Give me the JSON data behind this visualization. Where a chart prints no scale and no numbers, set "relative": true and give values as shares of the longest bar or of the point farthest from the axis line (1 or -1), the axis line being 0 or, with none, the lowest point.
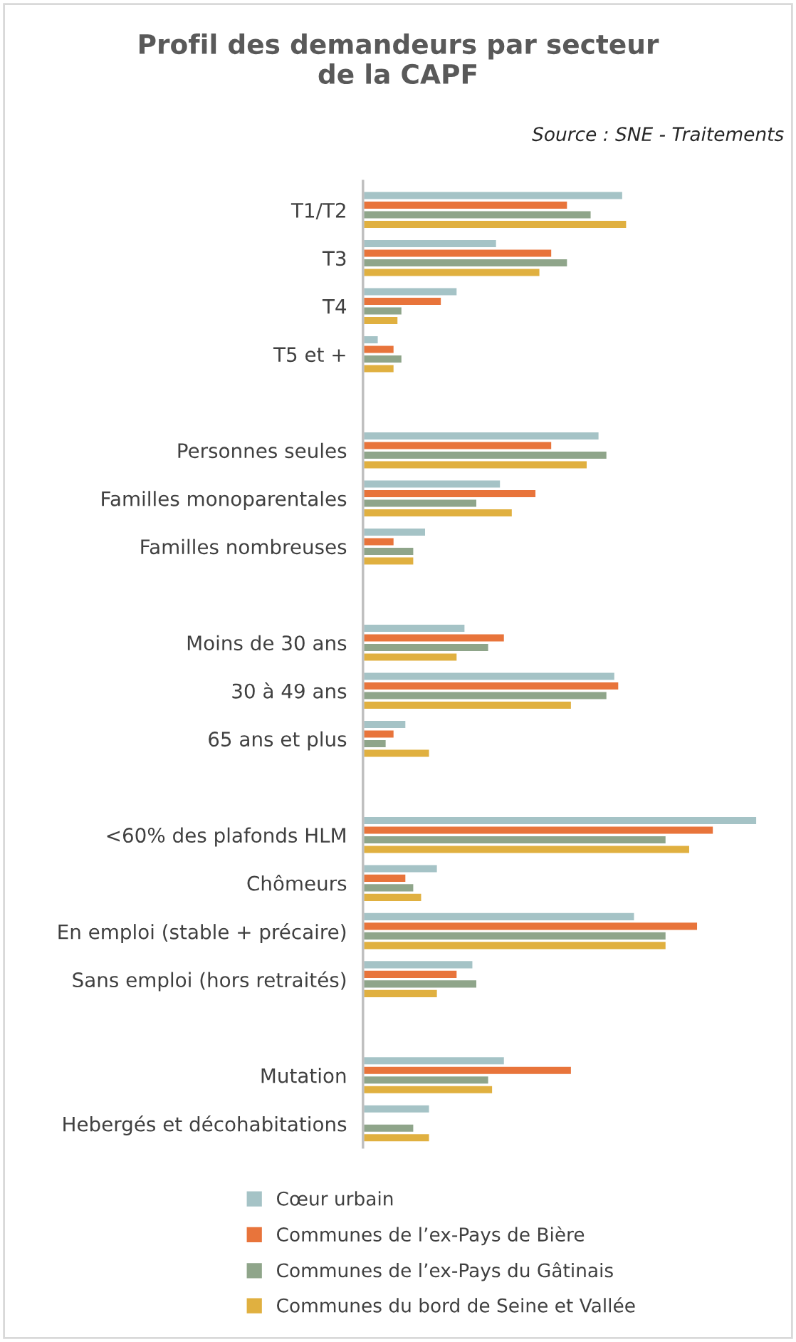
{
  "chart_data": {
    "type": "bar",
    "orientation": "horizontal",
    "relative": true,
    "title": "Profil des demandeurs par secteur\nde la CAPF",
    "annotations": [
      "Source : SNE - Traitements"
    ],
    "categories": [
      "T1/T2",
      "T3",
      "T4",
      "T5 et +",
      null,
      "Personnes seules",
      "Familles monoparentales",
      "Familles nombreuses",
      null,
      "Moins de 30 ans",
      "30 à 49 ans",
      "65 ans et plus",
      null,
      "<60% des plafonds HLM",
      "Chômeurs",
      "En emploi (stable + précaire)",
      "Sans emploi (hors retraités)",
      null,
      "Mutation",
      "Hebergés et décohabitations"
    ],
    "series": [
      {
        "name": "Cœur urbain",
        "color": "#a5c3c6",
        "values": [
          0.66,
          0.34,
          0.24,
          0.04,
          null,
          0.6,
          0.35,
          0.16,
          null,
          0.26,
          0.64,
          0.11,
          null,
          1,
          0.19,
          0.69,
          0.28,
          null,
          0.36,
          0.17
        ]
      },
      {
        "name": "Communes de l’ex-Pays de Bière",
        "color": "#e8743b",
        "values": [
          0.52,
          0.48,
          0.2,
          0.08,
          null,
          0.48,
          0.44,
          0.08,
          null,
          0.36,
          0.65,
          0.08,
          null,
          0.89,
          0.11,
          0.85,
          0.24,
          null,
          0.53,
          null
        ]
      },
      {
        "name": "Communes de l’ex-Pays du Gâtinais",
        "color": "#8fa58a",
        "values": [
          0.58,
          0.52,
          0.1,
          0.1,
          null,
          0.62,
          0.29,
          0.13,
          null,
          0.32,
          0.62,
          0.06,
          null,
          0.77,
          0.13,
          0.77,
          0.29,
          null,
          0.32,
          0.13
        ]
      },
      {
        "name": "Communes du bord de Seine et Vallée",
        "color": "#e0b040",
        "values": [
          0.67,
          0.45,
          0.09,
          0.08,
          null,
          0.57,
          0.38,
          0.13,
          null,
          0.24,
          0.53,
          0.17,
          null,
          0.83,
          0.15,
          0.77,
          0.19,
          null,
          0.33,
          0.17
        ]
      }
    ],
    "legend": "bottom"
  }
}
